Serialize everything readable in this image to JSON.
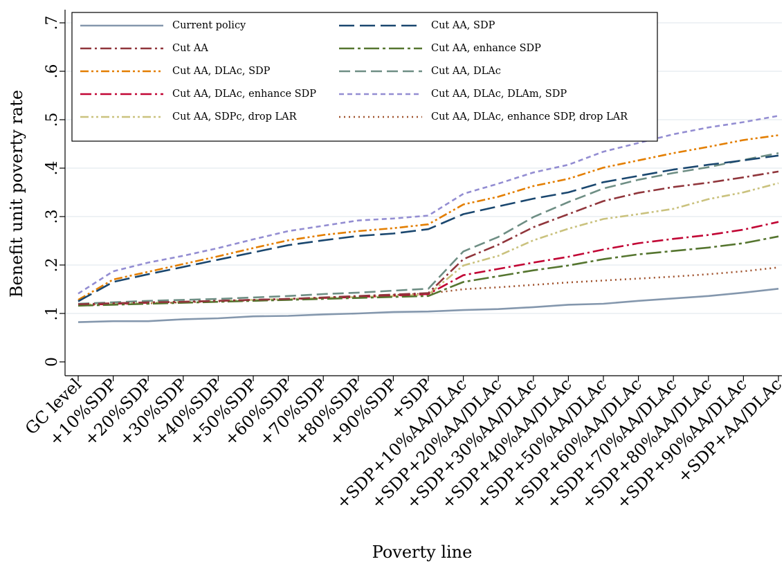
{
  "chart_data": {
    "type": "line",
    "xlabel": "Poverty line",
    "ylabel": "Benefit unit poverty rate",
    "ylim": [
      0,
      0.7
    ],
    "yticks": [
      0,
      0.1,
      0.2,
      0.3,
      0.4,
      0.5,
      0.6,
      0.7
    ],
    "ytick_labels": [
      "0",
      ".1",
      ".2",
      ".3",
      ".4",
      ".5",
      ".6",
      ".7"
    ],
    "grid": "horizontal",
    "legend_position": "top-left",
    "categories": [
      "GC level",
      "+10%SDP",
      "+20%SDP",
      "+30%SDP",
      "+40%SDP",
      "+50%SDP",
      "+60%SDP",
      "+70%SDP",
      "+80%SDP",
      "+90%SDP",
      "+SDP",
      "+SDP+10%AA/DLAc",
      "+SDP+20%AA/DLAc",
      "+SDP+30%AA/DLAc",
      "+SDP+40%AA/DLAc",
      "+SDP+50%AA/DLAc",
      "+SDP+60%AA/DLAc",
      "+SDP+70%AA/DLAc",
      "+SDP+80%AA/DLAc",
      "+SDP+90%AA/DLAc",
      "+SDP+AA/DLAc"
    ],
    "series": [
      {
        "name": "Current policy",
        "color": "#8497ad",
        "dash": "solid",
        "values": [
          0.082,
          0.084,
          0.084,
          0.088,
          0.09,
          0.094,
          0.095,
          0.098,
          0.1,
          0.103,
          0.104,
          0.107,
          0.109,
          0.113,
          0.118,
          0.12,
          0.126,
          0.131,
          0.136,
          0.143,
          0.151
        ]
      },
      {
        "name": "Cut AA, SDP",
        "color": "#1a476f",
        "dash": "longdash",
        "values": [
          0.125,
          0.165,
          0.181,
          0.196,
          0.211,
          0.226,
          0.241,
          0.251,
          0.26,
          0.265,
          0.274,
          0.305,
          0.321,
          0.337,
          0.35,
          0.371,
          0.384,
          0.397,
          0.407,
          0.416,
          0.426
        ]
      },
      {
        "name": "Cut AA",
        "color": "#90353b",
        "dash": "dashdot",
        "values": [
          0.119,
          0.121,
          0.123,
          0.124,
          0.126,
          0.128,
          0.13,
          0.133,
          0.136,
          0.139,
          0.142,
          0.212,
          0.242,
          0.278,
          0.305,
          0.332,
          0.349,
          0.361,
          0.37,
          0.381,
          0.393
        ]
      },
      {
        "name": "Cut AA, enhance SDP",
        "color": "#55752f",
        "dash": "longdashdot",
        "values": [
          0.116,
          0.118,
          0.12,
          0.122,
          0.124,
          0.126,
          0.128,
          0.13,
          0.132,
          0.134,
          0.136,
          0.165,
          0.177,
          0.189,
          0.199,
          0.212,
          0.222,
          0.229,
          0.236,
          0.245,
          0.259
        ]
      },
      {
        "name": "Cut AA, DLAc, SDP",
        "color": "#e37e00",
        "dash": "dashdotdot",
        "values": [
          0.128,
          0.17,
          0.186,
          0.202,
          0.218,
          0.235,
          0.251,
          0.262,
          0.27,
          0.276,
          0.284,
          0.325,
          0.341,
          0.363,
          0.378,
          0.401,
          0.416,
          0.431,
          0.444,
          0.458,
          0.468
        ]
      },
      {
        "name": "Cut AA, DLAc",
        "color": "#6e8e84",
        "dash": "dash",
        "values": [
          0.12,
          0.123,
          0.126,
          0.128,
          0.13,
          0.133,
          0.136,
          0.14,
          0.143,
          0.147,
          0.151,
          0.228,
          0.258,
          0.299,
          0.33,
          0.358,
          0.376,
          0.39,
          0.402,
          0.417,
          0.431
        ]
      },
      {
        "name": "Cut AA, DLAc, enhance SDP",
        "color": "#c10534",
        "dash": "dashdot",
        "values": [
          0.117,
          0.12,
          0.122,
          0.124,
          0.126,
          0.128,
          0.13,
          0.132,
          0.134,
          0.137,
          0.14,
          0.179,
          0.192,
          0.205,
          0.217,
          0.232,
          0.245,
          0.254,
          0.262,
          0.273,
          0.289
        ]
      },
      {
        "name": "Cut AA, DLAc, DLAm, SDP",
        "color": "#938dd2",
        "dash": "shortdash",
        "values": [
          0.141,
          0.187,
          0.205,
          0.219,
          0.235,
          0.253,
          0.27,
          0.281,
          0.292,
          0.296,
          0.302,
          0.347,
          0.368,
          0.391,
          0.407,
          0.434,
          0.452,
          0.47,
          0.484,
          0.495,
          0.508
        ]
      },
      {
        "name": "Cut AA, SDPc, drop LAR",
        "color": "#cac27e",
        "dash": "dashdotdot",
        "values": [
          0.118,
          0.12,
          0.122,
          0.124,
          0.126,
          0.128,
          0.13,
          0.132,
          0.134,
          0.136,
          0.139,
          0.199,
          0.219,
          0.251,
          0.275,
          0.295,
          0.305,
          0.316,
          0.336,
          0.35,
          0.369
        ]
      },
      {
        "name": "Cut AA, DLAc,  enhance SDP, drop LAR",
        "color": "#a0522d",
        "dash": "dot",
        "values": [
          0.117,
          0.119,
          0.121,
          0.123,
          0.125,
          0.127,
          0.129,
          0.132,
          0.135,
          0.138,
          0.141,
          0.15,
          0.154,
          0.159,
          0.164,
          0.168,
          0.172,
          0.176,
          0.181,
          0.187,
          0.195
        ]
      }
    ]
  }
}
